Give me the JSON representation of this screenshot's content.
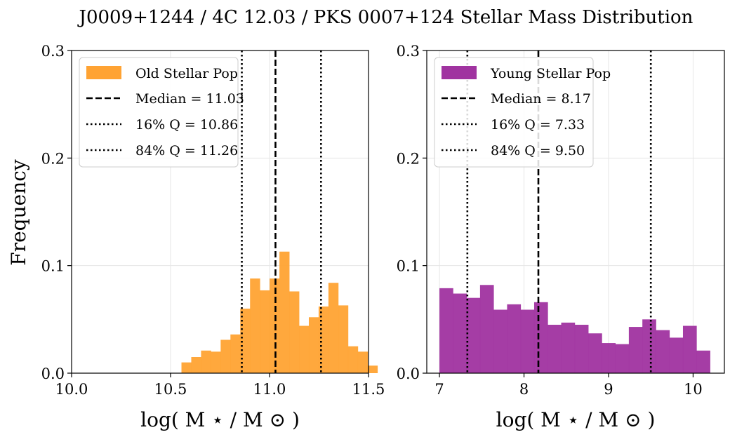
{
  "chart_data": [
    {
      "type": "bar",
      "subtype": "histogram",
      "title": "",
      "xlabel": "log( M ⋆ / M ⊙ )",
      "ylabel": "Frequency",
      "xlim": [
        10.0,
        11.5
      ],
      "ylim": [
        0.0,
        0.3
      ],
      "xticks": [
        "10.0",
        "10.5",
        "11.0",
        "11.5"
      ],
      "yticks": [
        "0.0",
        "0.1",
        "0.2",
        "0.3"
      ],
      "grid": true,
      "legend_position": "top-left",
      "color": "#ffa333",
      "bin_start": 10.555,
      "bin_width": 0.0495,
      "values": [
        0.01,
        0.015,
        0.021,
        0.02,
        0.031,
        0.036,
        0.06,
        0.088,
        0.077,
        0.088,
        0.113,
        0.076,
        0.044,
        0.052,
        0.062,
        0.084,
        0.063,
        0.025,
        0.02,
        0.007
      ],
      "series": [
        {
          "name": "Old Stellar Pop"
        }
      ],
      "reference_lines": [
        {
          "label": "Median = 11.03",
          "value": 11.03,
          "style": "dashed"
        },
        {
          "label": "16% Q = 10.86",
          "value": 10.86,
          "style": "dotted"
        },
        {
          "label": "84% Q = 11.26",
          "value": 11.26,
          "style": "dotted"
        }
      ]
    },
    {
      "type": "bar",
      "subtype": "histogram",
      "title": "",
      "xlabel": "log( M ⋆ / M ⊙ )",
      "ylabel": "",
      "xlim": [
        6.85,
        10.37
      ],
      "ylim": [
        0.0,
        0.3
      ],
      "xticks": [
        "7",
        "8",
        "9",
        "10"
      ],
      "yticks": [
        "0.0",
        "0.1",
        "0.2",
        "0.3"
      ],
      "grid": true,
      "legend_position": "top-left",
      "color": "#a033a0",
      "bin_start": 7.0,
      "bin_width": 0.16,
      "values": [
        0.079,
        0.074,
        0.07,
        0.082,
        0.059,
        0.064,
        0.059,
        0.066,
        0.045,
        0.047,
        0.045,
        0.037,
        0.028,
        0.027,
        0.043,
        0.05,
        0.04,
        0.033,
        0.044,
        0.021
      ],
      "series": [
        {
          "name": "Young Stellar Pop"
        }
      ],
      "reference_lines": [
        {
          "label": "Median = 8.17",
          "value": 8.17,
          "style": "dashed"
        },
        {
          "label": "16% Q = 7.33",
          "value": 7.33,
          "style": "dotted"
        },
        {
          "label": "84% Q = 9.50",
          "value": 9.5,
          "style": "dotted"
        }
      ]
    }
  ],
  "figure": {
    "suptitle": "J0009+1244 / 4C 12.03 / PKS 0007+124 Stellar Mass Distribution"
  }
}
